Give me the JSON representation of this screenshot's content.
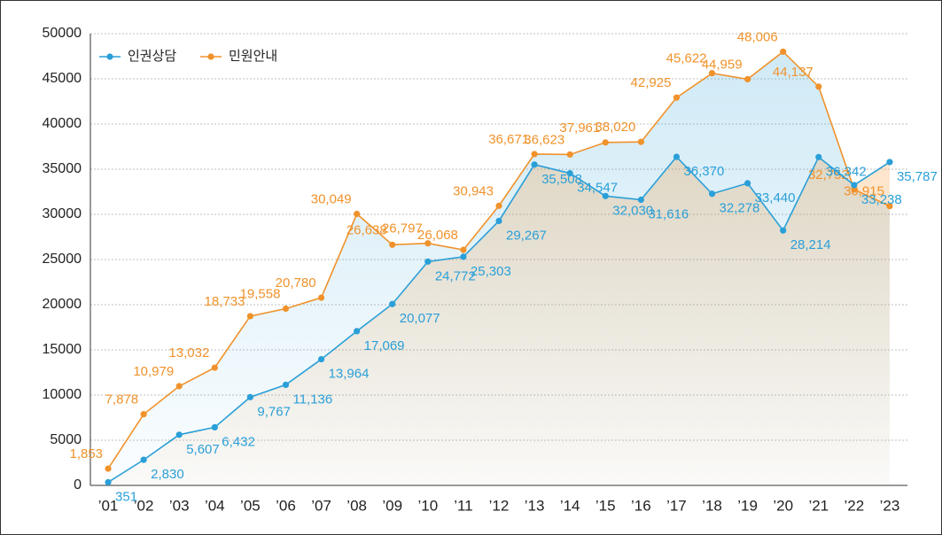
{
  "chart_data": {
    "type": "line",
    "categories": [
      "’01",
      "’02",
      "’03",
      "’04",
      "’05",
      "’06",
      "’07",
      "’08",
      "’09",
      "’10",
      "’11",
      "’12",
      "’13",
      "’14",
      "’15",
      "’16",
      "’17",
      "’18",
      "’19",
      "’20",
      "’21",
      "’22",
      "’23"
    ],
    "series": [
      {
        "name": "인권상담",
        "color": "#2a9fd8",
        "values": [
          351,
          2830,
          5607,
          6432,
          9767,
          11136,
          13964,
          17069,
          20077,
          24772,
          25303,
          29267,
          35508,
          34547,
          32030,
          31616,
          36370,
          32278,
          33440,
          28214,
          36342,
          33238,
          35787
        ],
        "value_labels": [
          "351",
          "2,830",
          "5,607",
          "6,432",
          "9,767",
          "11,136",
          "13,964",
          "17,069",
          "20,077",
          "24,772",
          "25,303",
          "29,267",
          "35,508",
          "34,547",
          "32,030",
          "31,616",
          "36,370",
          "32,278",
          "33,440",
          "28,214",
          "36,342",
          "33,238",
          "35,787"
        ]
      },
      {
        "name": "민원안내",
        "color": "#f0922b",
        "values": [
          1853,
          7878,
          10979,
          13032,
          18733,
          19558,
          20780,
          30049,
          26638,
          26797,
          26068,
          30943,
          36671,
          36623,
          37961,
          38020,
          42925,
          45622,
          44959,
          48006,
          44137,
          32752,
          30915
        ],
        "value_labels": [
          "1,853",
          "7,878",
          "10,979",
          "13,032",
          "18,733",
          "19,558",
          "20,780",
          "30,049",
          "26,638",
          "26,797",
          "26,068",
          "30,943",
          "36,671",
          "36,623",
          "37,961",
          "38,020",
          "42,925",
          "45,622",
          "44,959",
          "48,006",
          "44,137",
          "32,752",
          "30,915"
        ]
      }
    ],
    "ylim": [
      0,
      50000
    ],
    "yticks": [
      0,
      5000,
      10000,
      15000,
      20000,
      25000,
      30000,
      35000,
      40000,
      45000,
      50000
    ],
    "grid": true,
    "legend": "top-left"
  }
}
